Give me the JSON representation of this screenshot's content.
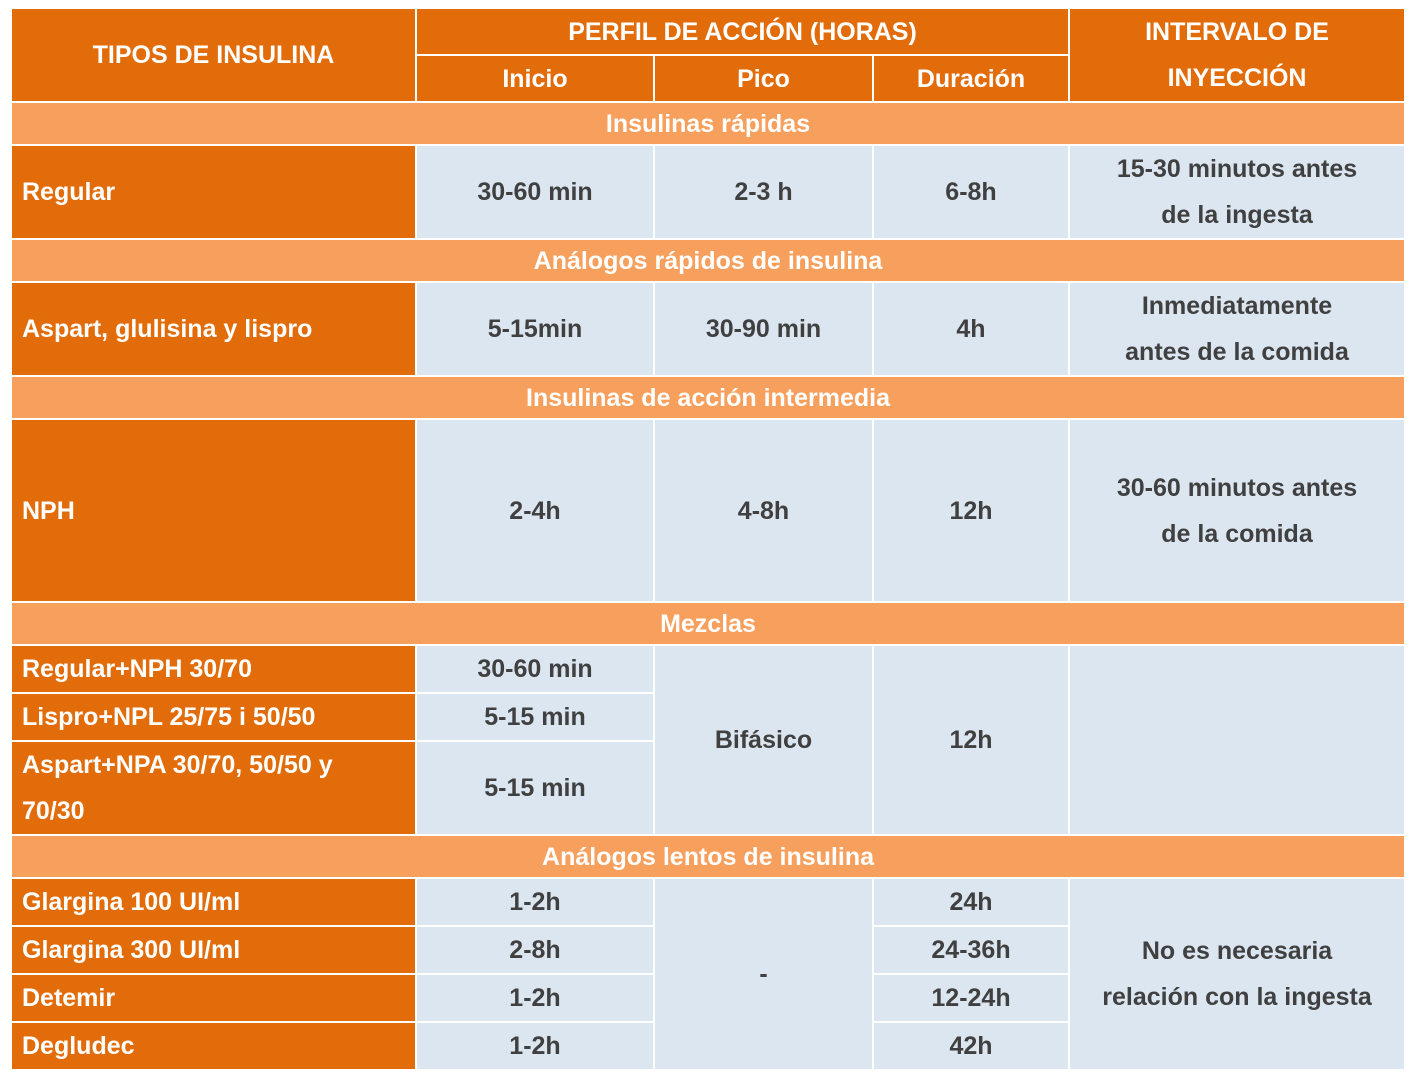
{
  "header": {
    "types": "TIPOS DE INSULINA",
    "profile": "PERFIL DE ACCIÓN (HORAS)",
    "onset": "Inicio",
    "peak": "Pico",
    "duration": "Duración",
    "interval_line1": "INTERVALO DE",
    "interval_line2": "INYECCIÓN"
  },
  "sections": {
    "rapid": "Insulinas rápidas",
    "rapid_analogs": "Análogos rápidos de insulina",
    "intermediate": "Insulinas de acción intermedia",
    "mixes": "Mezclas",
    "slow_analogs": "Análogos lentos de insulina"
  },
  "rapid": {
    "type": "Regular",
    "onset": "30-60 min",
    "peak": "2-3 h",
    "duration": "6-8h",
    "interval_line1": "15-30 minutos antes",
    "interval_line2": "de la ingesta"
  },
  "rapid_analogs": {
    "type": "Aspart, glulisina y lispro",
    "onset": "5-15min",
    "peak": "30-90 min",
    "duration": "4h",
    "interval_line1": "Inmediatamente",
    "interval_line2": "antes de la comida"
  },
  "intermediate": {
    "type": "NPH",
    "onset": "2-4h",
    "peak": "4-8h",
    "duration": "12h",
    "interval_line1": "30-60 minutos antes",
    "interval_line2": "de la comida"
  },
  "mixes": {
    "rows": [
      {
        "type": "Regular+NPH 30/70",
        "onset": "30-60 min"
      },
      {
        "type": "Lispro+NPL 25/75 i 50/50",
        "onset": "5-15 min"
      },
      {
        "type_line1": "Aspart+NPA 30/70, 50/50 y",
        "type_line2": "70/30",
        "onset": "5-15 min"
      }
    ],
    "peak": "Bifásico",
    "duration": "12h",
    "interval": ""
  },
  "slow_analogs": {
    "rows": [
      {
        "type": "Glargina 100 UI/ml",
        "onset": "1-2h",
        "duration": "24h"
      },
      {
        "type": "Glargina 300 UI/ml",
        "onset": "2-8h",
        "duration": "24-36h"
      },
      {
        "type": "Detemir",
        "onset": "1-2h",
        "duration": "12-24h"
      },
      {
        "type": "Degludec",
        "onset": "1-2h",
        "duration": "42h"
      }
    ],
    "peak": "-",
    "interval_line1": "No es necesaria",
    "interval_line2": "relación con la ingesta"
  },
  "colors": {
    "header_orange": "#E36C0A",
    "section_orange": "#F79F5C",
    "cell_blue": "#DCE6F1"
  }
}
